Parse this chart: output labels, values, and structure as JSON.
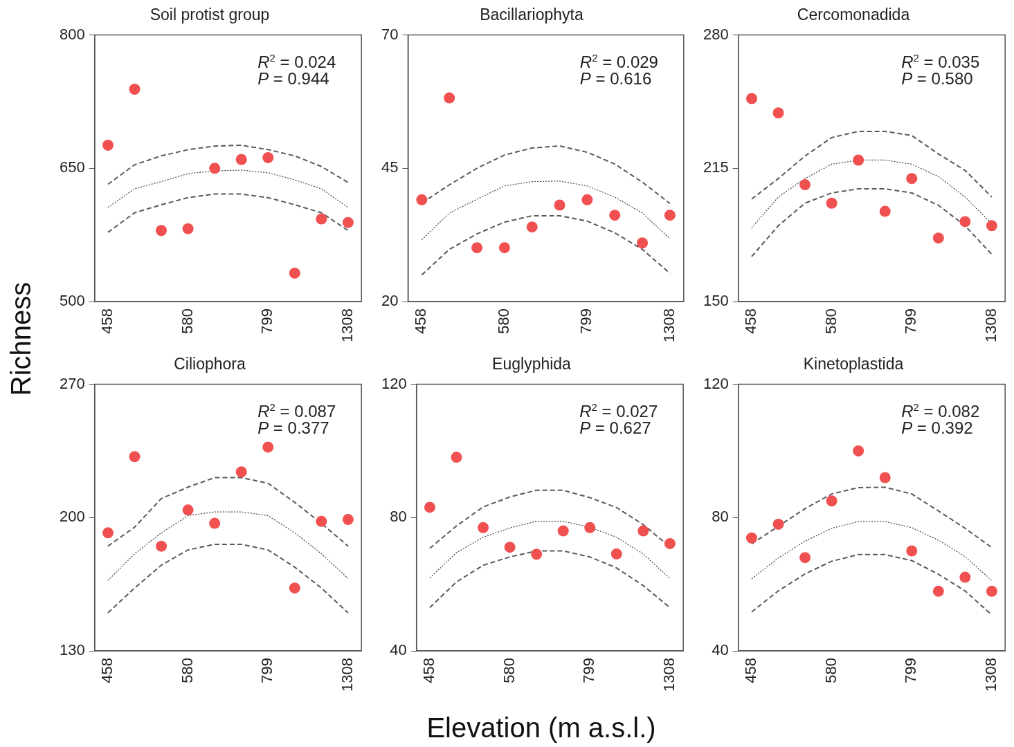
{
  "chart_data": [
    {
      "type": "scatter",
      "title": "Soil protist group",
      "ylabel": "Richness",
      "categories": [
        "458",
        null,
        null,
        "580",
        null,
        null,
        "799",
        null,
        null,
        "1308"
      ],
      "ylim": [
        500,
        800
      ],
      "yticks": [
        500,
        650,
        800
      ],
      "annotations": [
        "R$^{2}$ = 0.024",
        "P = 0.944"
      ],
      "series": [
        {
          "type": "line",
          "color": "#595959",
          "line_style": "dashed",
          "marker": "none",
          "values": [
            632,
            654,
            664,
            671,
            675,
            676,
            671,
            664,
            652,
            634
          ]
        },
        {
          "type": "line",
          "color": "#404040",
          "line_style": "dotted",
          "marker": "none",
          "values": [
            606,
            627,
            635,
            644,
            647,
            648,
            645,
            637,
            627,
            606
          ]
        },
        {
          "type": "line",
          "color": "#595959",
          "line_style": "dashed",
          "marker": "none",
          "values": [
            578,
            600,
            609,
            617,
            621,
            621,
            617,
            609,
            600,
            580
          ]
        },
        {
          "type": "scatter",
          "color": "#f05050",
          "marker": "circle",
          "values": [
            676,
            739,
            580,
            582,
            650,
            660,
            662,
            532,
            593,
            589
          ]
        }
      ]
    },
    {
      "type": "scatter",
      "title": "Bacillariophyta",
      "categories": [
        "458",
        null,
        null,
        "580",
        null,
        null,
        "799",
        null,
        null,
        "1308"
      ],
      "ylim": [
        20,
        70
      ],
      "yticks": [
        20,
        45,
        70
      ],
      "annotations": [
        "R$^{2}$ = 0.029",
        "P = 0.616"
      ],
      "series": [
        {
          "type": "line",
          "color": "#595959",
          "line_style": "dashed",
          "marker": "none",
          "values": [
            38.5,
            41.9,
            45.0,
            47.5,
            48.8,
            49.2,
            48.0,
            45.8,
            42.4,
            38.4
          ]
        },
        {
          "type": "line",
          "color": "#404040",
          "line_style": "dotted",
          "marker": "none",
          "values": [
            31.6,
            36.6,
            39.2,
            41.7,
            42.5,
            42.6,
            41.7,
            39.6,
            36.6,
            31.8
          ]
        },
        {
          "type": "line",
          "color": "#595959",
          "line_style": "dashed",
          "marker": "none",
          "values": [
            25.0,
            29.8,
            32.7,
            34.9,
            36.1,
            36.1,
            35.1,
            32.9,
            29.8,
            25.3
          ]
        },
        {
          "type": "scatter",
          "color": "#f05050",
          "marker": "circle",
          "values": [
            39.1,
            58.2,
            30.1,
            30.1,
            34.0,
            38.1,
            39.1,
            36.2,
            31.0,
            36.2
          ]
        }
      ]
    },
    {
      "type": "scatter",
      "title": "Cercomonadida",
      "categories": [
        "458",
        null,
        null,
        "580",
        null,
        null,
        "799",
        null,
        null,
        "1308"
      ],
      "ylim": [
        150,
        280
      ],
      "yticks": [
        150,
        215,
        280
      ],
      "annotations": [
        "R$^{2}$ = 0.035",
        "P = 0.580"
      ],
      "series": [
        {
          "type": "line",
          "color": "#595959",
          "line_style": "dashed",
          "marker": "none",
          "values": [
            200,
            210,
            221,
            230,
            233,
            233,
            231,
            222,
            214,
            201
          ]
        },
        {
          "type": "line",
          "color": "#404040",
          "line_style": "dotted",
          "marker": "none",
          "values": [
            186,
            201,
            210,
            217,
            219,
            219,
            217,
            211,
            201,
            188
          ]
        },
        {
          "type": "line",
          "color": "#595959",
          "line_style": "dashed",
          "marker": "none",
          "values": [
            172,
            187,
            198,
            203,
            205,
            205,
            203,
            197,
            187,
            173
          ]
        },
        {
          "type": "scatter",
          "color": "#f05050",
          "marker": "circle",
          "values": [
            249,
            242,
            207,
            198,
            219,
            194,
            210,
            181,
            189,
            187
          ]
        }
      ]
    },
    {
      "type": "scatter",
      "title": "Ciliophora",
      "categories": [
        "458",
        null,
        null,
        "580",
        null,
        null,
        "799",
        null,
        null,
        "1308"
      ],
      "ylim": [
        130,
        270
      ],
      "yticks": [
        130,
        200,
        270
      ],
      "annotations": [
        "R$^{2}$ = 0.087",
        "P = 0.377"
      ],
      "series": [
        {
          "type": "line",
          "color": "#595959",
          "line_style": "dashed",
          "marker": "none",
          "values": [
            185,
            195,
            210,
            216,
            221,
            221,
            218,
            208,
            197,
            185
          ]
        },
        {
          "type": "line",
          "color": "#404040",
          "line_style": "dotted",
          "marker": "none",
          "values": [
            167,
            181,
            192,
            201,
            203,
            203,
            201,
            192,
            181,
            168
          ]
        },
        {
          "type": "line",
          "color": "#595959",
          "line_style": "dashed",
          "marker": "none",
          "values": [
            150,
            163,
            175,
            183,
            186,
            186,
            183,
            174,
            163,
            150
          ]
        },
        {
          "type": "scatter",
          "color": "#f05050",
          "marker": "circle",
          "values": [
            192,
            232,
            185,
            204,
            197,
            224,
            237,
            163,
            198,
            199
          ]
        }
      ]
    },
    {
      "type": "scatter",
      "title": "Euglyphida",
      "xlabel": "Elevation (m a.s.l.)",
      "categories": [
        "458",
        null,
        null,
        "580",
        null,
        null,
        "799",
        null,
        null,
        "1308"
      ],
      "ylim": [
        40,
        120
      ],
      "yticks": [
        40,
        80,
        120
      ],
      "annotations": [
        "R$^{2}$ = 0.027",
        "P = 0.627"
      ],
      "series": [
        {
          "type": "line",
          "color": "#595959",
          "line_style": "dashed",
          "marker": "none",
          "values": [
            70.8,
            77.5,
            83.2,
            86.2,
            88.2,
            88.2,
            86.0,
            83.0,
            77.9,
            71.2
          ]
        },
        {
          "type": "line",
          "color": "#404040",
          "line_style": "dotted",
          "marker": "none",
          "values": [
            61.9,
            69.5,
            74.1,
            76.9,
            78.9,
            78.9,
            77.1,
            74.1,
            69.1,
            61.7
          ]
        },
        {
          "type": "line",
          "color": "#595959",
          "line_style": "dashed",
          "marker": "none",
          "values": [
            53.0,
            60.7,
            65.7,
            68.2,
            70.0,
            70.0,
            68.2,
            64.9,
            59.6,
            53.0
          ]
        },
        {
          "type": "scatter",
          "color": "#f05050",
          "marker": "circle",
          "values": [
            83.1,
            98.1,
            77.0,
            71.1,
            69.0,
            76.0,
            77.0,
            69.1,
            76.0,
            72.2
          ]
        }
      ]
    },
    {
      "type": "scatter",
      "title": "Kinetoplastida",
      "categories": [
        "458",
        null,
        null,
        "580",
        null,
        null,
        "799",
        null,
        null,
        "1308"
      ],
      "ylim": [
        40,
        120
      ],
      "yticks": [
        40,
        80,
        120
      ],
      "annotations": [
        "R$^{2}$ = 0.082",
        "P = 0.392"
      ],
      "series": [
        {
          "type": "line",
          "color": "#595959",
          "line_style": "dashed",
          "marker": "none",
          "values": [
            72.1,
            77.4,
            82.7,
            87.1,
            89.0,
            89.1,
            87.1,
            82.0,
            76.8,
            71.0
          ]
        },
        {
          "type": "line",
          "color": "#404040",
          "line_style": "dotted",
          "marker": "none",
          "values": [
            61.6,
            67.9,
            72.9,
            76.8,
            78.8,
            78.8,
            77.0,
            73.2,
            68.3,
            61.1
          ]
        },
        {
          "type": "line",
          "color": "#595959",
          "line_style": "dashed",
          "marker": "none",
          "values": [
            51.7,
            58.0,
            63.1,
            66.9,
            68.9,
            68.9,
            67.1,
            63.0,
            58.0,
            50.8
          ]
        },
        {
          "type": "scatter",
          "color": "#f05050",
          "marker": "circle",
          "values": [
            73.9,
            78.0,
            68.0,
            85.0,
            100.0,
            92.0,
            70.0,
            57.9,
            62.1,
            57.9
          ]
        }
      ]
    }
  ]
}
